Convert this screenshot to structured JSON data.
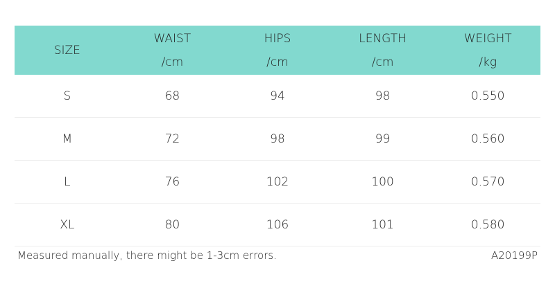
{
  "colors": {
    "header_bg": "#82d9cf"
  },
  "columns": [
    {
      "title": "SIZE",
      "unit": ""
    },
    {
      "title": "WAIST",
      "unit": "/cm"
    },
    {
      "title": "HIPS",
      "unit": "/cm"
    },
    {
      "title": "LENGTH",
      "unit": "/cm"
    },
    {
      "title": "WEIGHT",
      "unit": "/kg"
    }
  ],
  "rows": [
    [
      "S",
      "68",
      "94",
      "98",
      "0.550"
    ],
    [
      "M",
      "72",
      "98",
      "99",
      "0.560"
    ],
    [
      "L",
      "76",
      "102",
      "100",
      "0.570"
    ],
    [
      "XL",
      "80",
      "106",
      "101",
      "0.580"
    ]
  ],
  "footer": {
    "note": "Measured manually, there might be 1-3cm errors.",
    "code": "A20199P"
  }
}
